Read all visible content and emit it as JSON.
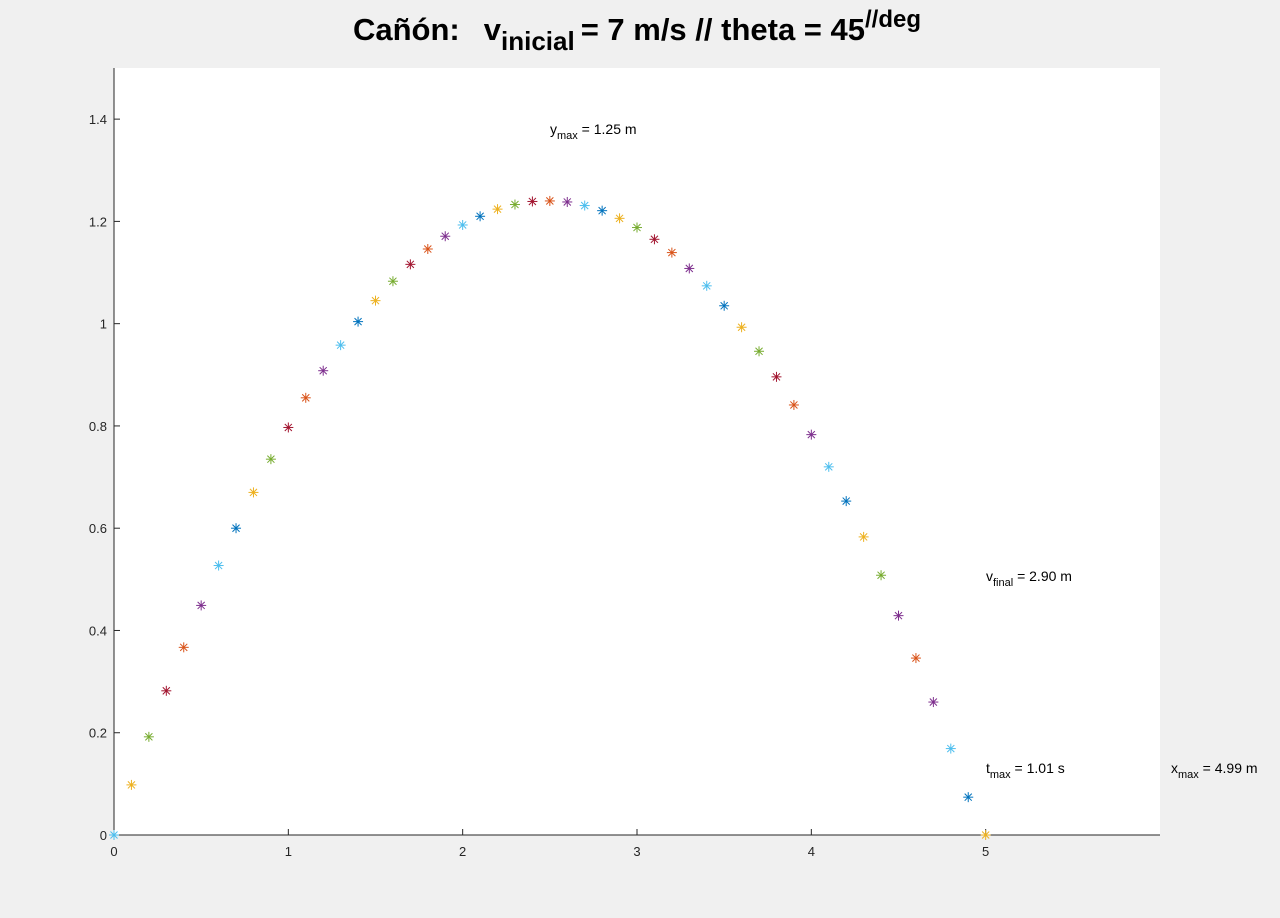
{
  "chart_data": {
    "type": "scatter",
    "title": {
      "prefix": "Cañón:",
      "v": "v",
      "v_sub": "inicial",
      "eq": "=  7 m/s // theta = 45",
      "sup": "//deg"
    },
    "marker": "*",
    "xlim": [
      0,
      6
    ],
    "ylim": [
      0,
      1.5
    ],
    "x_ticks": [
      0,
      1,
      2,
      3,
      4,
      5
    ],
    "x_tick_labels": [
      "0",
      "1",
      "2",
      "3",
      "4",
      "5"
    ],
    "y_ticks": [
      0,
      0.2,
      0.4,
      0.6,
      0.8,
      1,
      1.2,
      1.4
    ],
    "y_tick_labels": [
      "0",
      "0.2",
      "0.4",
      "0.6",
      "0.8",
      "1",
      "1.2",
      "1.4"
    ],
    "grid": false,
    "points": {
      "x": [
        0,
        0.1,
        0.2,
        0.3,
        0.4,
        0.5,
        0.6,
        0.7,
        0.8,
        0.9,
        1.0,
        1.1,
        1.2,
        1.3,
        1.4,
        1.5,
        1.6,
        1.7,
        1.8,
        1.9,
        2.0,
        2.1,
        2.2,
        2.3,
        2.4,
        2.5,
        2.6,
        2.7,
        2.8,
        2.9,
        3.0,
        3.1,
        3.2,
        3.3,
        3.4,
        3.5,
        3.6,
        3.7,
        3.8,
        3.9,
        4.0,
        4.1,
        4.2,
        4.3,
        4.4,
        4.5,
        4.6,
        4.7,
        4.8,
        4.9,
        5.0
      ],
      "y": [
        0,
        0.098,
        0.192,
        0.282,
        0.367,
        0.449,
        0.527,
        0.6,
        0.67,
        0.735,
        0.797,
        0.855,
        0.908,
        0.958,
        1.004,
        1.045,
        1.083,
        1.116,
        1.146,
        1.171,
        1.193,
        1.21,
        1.224,
        1.233,
        1.239,
        1.24,
        1.238,
        1.231,
        1.221,
        1.206,
        1.188,
        1.165,
        1.139,
        1.108,
        1.074,
        1.035,
        0.993,
        0.946,
        0.896,
        0.841,
        0.783,
        0.72,
        0.653,
        0.583,
        0.508,
        0.429,
        0.346,
        0.26,
        0.169,
        0.074,
        0
      ],
      "colors": [
        "#4DBEEE",
        "#EDB120",
        "#77AC30",
        "#A2142F",
        "#D95319",
        "#7E2F8E",
        "#4DBEEE",
        "#0072BD",
        "#EDB120",
        "#77AC30",
        "#A2142F",
        "#D95319",
        "#7E2F8E",
        "#4DBEEE",
        "#0072BD",
        "#EDB120",
        "#77AC30",
        "#A2142F",
        "#D95319",
        "#7E2F8E",
        "#4DBEEE",
        "#0072BD",
        "#EDB120",
        "#77AC30",
        "#A2142F",
        "#D95319",
        "#7E2F8E",
        "#4DBEEE",
        "#0072BD",
        "#EDB120",
        "#77AC30",
        "#A2142F",
        "#D95319",
        "#7E2F8E",
        "#4DBEEE",
        "#0072BD",
        "#EDB120",
        "#77AC30",
        "#A2142F",
        "#D95319",
        "#7E2F8E",
        "#4DBEEE",
        "#0072BD",
        "#EDB120",
        "#77AC30",
        "#7E2F8E",
        "#D95319",
        "#7E2F8E",
        "#4DBEEE",
        "#0072BD",
        "#EDB120"
      ]
    },
    "annotations": {
      "ymax": {
        "main": "y",
        "sub": "max",
        "rest": " = 1.25 m"
      },
      "vfinal": {
        "main": "v",
        "sub": "final",
        "rest": " = 2.90 m"
      },
      "tmax": {
        "main": "t",
        "sub": "max",
        "rest": " = 1.01 s"
      },
      "xmax": {
        "main": "x",
        "sub": "max",
        "rest": " = 4.99 m"
      }
    }
  }
}
